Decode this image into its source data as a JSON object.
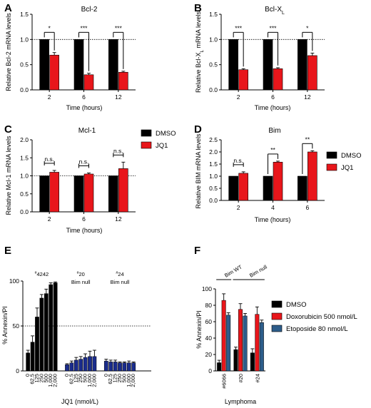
{
  "legend": {
    "dmso": "DMSO",
    "jq1": "JQ1",
    "doxorubicin": "Doxorubicin 500 nmol/L",
    "etoposide": "Etoposide 80 nmol/L"
  },
  "colors": {
    "dmso": "#000000",
    "jq1": "#e8161b",
    "doxorubicin": "#e8161b",
    "etoposide": "#2d5d8a",
    "sample_4242": "#000000",
    "sample_bim_null": "#1a2c8c"
  },
  "chart_data": [
    {
      "letter": "A",
      "type": "bar",
      "title": "Bcl-2",
      "ylabel": "Relative Bcl-2 mRNA levels",
      "xlabel": "Time (hours)",
      "categories": [
        "2",
        "6",
        "12"
      ],
      "ylim": [
        0,
        1.5
      ],
      "yticks": [
        "0.0",
        "0.5",
        "1.0",
        "1.5"
      ],
      "reference_line": 1.0,
      "series": [
        {
          "name": "DMSO",
          "values": [
            1.0,
            1.0,
            1.0
          ],
          "errors": [
            0,
            0,
            0
          ]
        },
        {
          "name": "JQ1",
          "values": [
            0.69,
            0.3,
            0.35
          ],
          "errors": [
            0.05,
            0.03,
            0.02
          ]
        }
      ],
      "significance": [
        "*",
        "***",
        "***"
      ]
    },
    {
      "letter": "B",
      "type": "bar",
      "title": "Bcl-X",
      "title_sub": "L",
      "ylabel": "Relative Bcl-X",
      "ylabel_sub": "L",
      "ylabel_tail": " mRNA levels",
      "xlabel": "Time (hours)",
      "categories": [
        "2",
        "6",
        "12"
      ],
      "ylim": [
        0,
        1.5
      ],
      "yticks": [
        "0.0",
        "0.5",
        "1.0",
        "1.5"
      ],
      "reference_line": 1.0,
      "series": [
        {
          "name": "DMSO",
          "values": [
            1.0,
            1.0,
            1.0
          ],
          "errors": [
            0,
            0,
            0
          ]
        },
        {
          "name": "JQ1",
          "values": [
            0.4,
            0.42,
            0.68
          ],
          "errors": [
            0.02,
            0.02,
            0.05
          ]
        }
      ],
      "significance": [
        "***",
        "***",
        "*"
      ]
    },
    {
      "letter": "C",
      "type": "bar",
      "title": "Mcl-1",
      "ylabel": "Relative Mcl-1 mRNA levels",
      "xlabel": "Time (hours)",
      "categories": [
        "2",
        "6",
        "12"
      ],
      "ylim": [
        0,
        2.0
      ],
      "yticks": [
        "0.0",
        "0.5",
        "1.0",
        "1.5",
        "2.0"
      ],
      "reference_line": 1.0,
      "series": [
        {
          "name": "DMSO",
          "values": [
            1.0,
            1.0,
            1.0
          ],
          "errors": [
            0,
            0,
            0
          ]
        },
        {
          "name": "JQ1",
          "values": [
            1.1,
            1.05,
            1.2
          ],
          "errors": [
            0.05,
            0.03,
            0.18
          ]
        }
      ],
      "significance": [
        "n.s.",
        "n.s.",
        "n.s."
      ],
      "legend": "top-right"
    },
    {
      "letter": "D",
      "type": "bar",
      "title": "Bim",
      "ylabel": "Relative BIM mRNA levels",
      "xlabel": "Time (hours)",
      "categories": [
        "2",
        "4",
        "6"
      ],
      "ylim": [
        0,
        2.5
      ],
      "yticks": [
        "0.0",
        "0.5",
        "1.0",
        "1.5",
        "2.0",
        "2.5"
      ],
      "series": [
        {
          "name": "DMSO",
          "values": [
            1.0,
            1.0,
            1.0
          ],
          "errors": [
            0,
            0,
            0
          ]
        },
        {
          "name": "JQ1",
          "values": [
            1.12,
            1.58,
            2.0
          ],
          "errors": [
            0.06,
            0.04,
            0.05
          ]
        }
      ],
      "significance": [
        "n.s.",
        "**",
        "**"
      ],
      "legend": "top-right"
    },
    {
      "letter": "E",
      "type": "bar",
      "ylabel": "% Annexin/PI",
      "xlabel": "JQ1 (nmol/L)",
      "ylim": [
        0,
        100
      ],
      "yticks": [
        "0",
        "50",
        "100"
      ],
      "reference_line": 50,
      "category_labels": [
        "0",
        "62.5",
        "125",
        "250",
        "500",
        "1,000",
        "2,000"
      ],
      "groups": [
        {
          "label": "#4242",
          "label_prefix": "#",
          "label_id": "4242",
          "label_sub": "",
          "color_key": "sample_4242",
          "values": [
            20,
            32,
            60,
            81,
            86,
            96,
            98
          ],
          "errors": [
            3,
            7,
            10,
            4,
            5,
            2,
            1
          ]
        },
        {
          "label": "#20 Bim null",
          "label_prefix": "#",
          "label_id": "20",
          "label_sub": "Bim null",
          "color_key": "sample_bim_null",
          "values": [
            7,
            9,
            12,
            13,
            15,
            16,
            16
          ],
          "errors": [
            1,
            2,
            3,
            3,
            4,
            6,
            7
          ]
        },
        {
          "label": "#24 Bim null",
          "label_prefix": "#",
          "label_id": "24",
          "label_sub": "Bim null",
          "color_key": "sample_bim_null",
          "values": [
            11,
            10,
            10,
            9,
            9,
            9,
            9
          ],
          "errors": [
            2,
            2,
            2,
            1,
            1,
            2,
            1
          ]
        }
      ]
    },
    {
      "letter": "F",
      "type": "bar",
      "ylabel": "% Annexin/PI",
      "xlabel": "Lymphoma",
      "categories": [
        "#6066",
        "#20",
        "#24"
      ],
      "ylim": [
        0,
        100
      ],
      "yticks": [
        "0",
        "20",
        "40",
        "60",
        "80",
        "100"
      ],
      "brackets": [
        {
          "label": "Bim WT",
          "from": 0,
          "to": 0
        },
        {
          "label": "Bim null",
          "from": 1,
          "to": 2
        }
      ],
      "series": [
        {
          "name": "DMSO",
          "color_key": "dmso",
          "values": [
            10,
            26,
            22
          ],
          "errors": [
            3,
            3,
            5
          ]
        },
        {
          "name": "Doxorubicin 500 nmol/L",
          "color_key": "doxorubicin",
          "values": [
            86,
            75,
            69
          ],
          "errors": [
            8,
            7,
            9
          ]
        },
        {
          "name": "Etoposide 80 nmol/L",
          "color_key": "etoposide",
          "values": [
            68,
            67,
            59
          ],
          "errors": [
            3,
            3,
            3
          ]
        }
      ],
      "legend": "right"
    }
  ]
}
